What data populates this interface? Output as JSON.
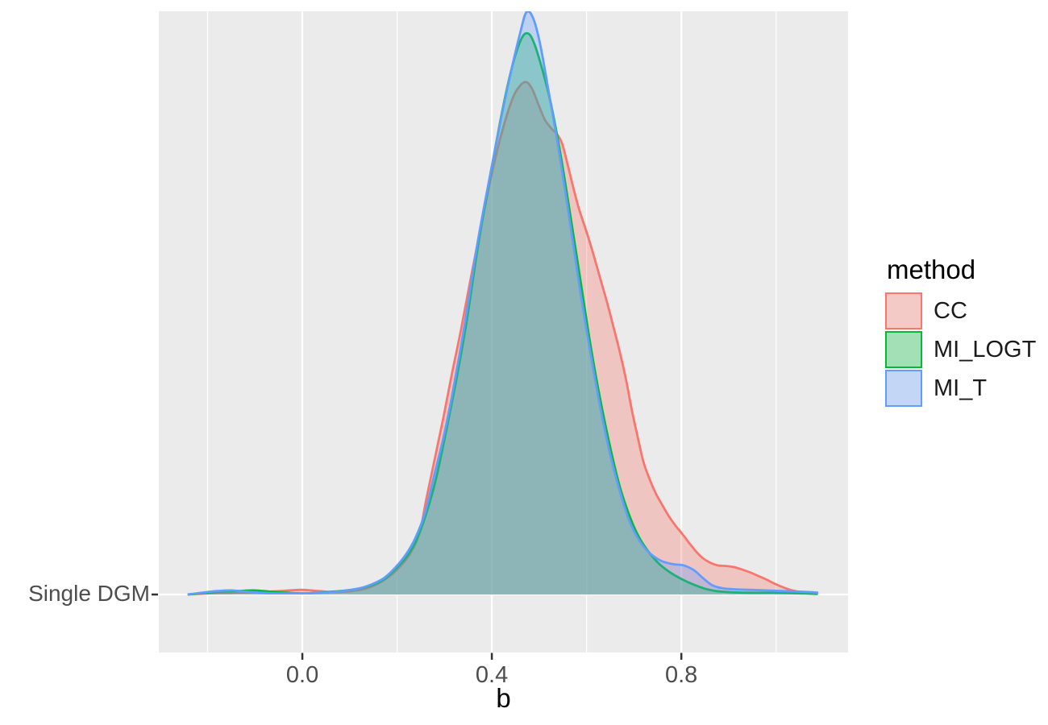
{
  "chart_data": {
    "type": "area",
    "subtype": "density-ridge",
    "x_axis": {
      "label": "b",
      "lim": [
        -0.303,
        1.152
      ],
      "ticks": {
        "values": [
          0.0,
          0.4,
          0.8
        ],
        "labels": [
          "0.0",
          "0.4",
          "0.8"
        ]
      },
      "minor_ticks": [
        -0.2,
        0.2,
        0.6,
        1.0
      ]
    },
    "y_axis": {
      "category": "Single DGM"
    },
    "legend": {
      "title": "method",
      "position": "right"
    },
    "fill_opacity": 0.32,
    "stroke_width": 2.8,
    "colors": {
      "panel_bg": "#EBEBEB",
      "grid": "#FFFFFF",
      "tick": "#333333",
      "axis_text": "#4D4D4D",
      "legend_key_bg": "#F2F2F2"
    },
    "series": [
      {
        "name": "CC",
        "color": "#F8766D",
        "points": [
          [
            -0.242,
            0.0
          ],
          [
            -0.196,
            0.002
          ],
          [
            -0.145,
            0.003
          ],
          [
            -0.094,
            0.004
          ],
          [
            -0.046,
            0.006
          ],
          [
            -0.003,
            0.008
          ],
          [
            0.034,
            0.006
          ],
          [
            0.068,
            0.004
          ],
          [
            0.106,
            0.006
          ],
          [
            0.133,
            0.01
          ],
          [
            0.158,
            0.018
          ],
          [
            0.182,
            0.03
          ],
          [
            0.204,
            0.046
          ],
          [
            0.226,
            0.068
          ],
          [
            0.247,
            0.105
          ],
          [
            0.262,
            0.165
          ],
          [
            0.28,
            0.235
          ],
          [
            0.298,
            0.305
          ],
          [
            0.316,
            0.38
          ],
          [
            0.335,
            0.455
          ],
          [
            0.356,
            0.545
          ],
          [
            0.377,
            0.632
          ],
          [
            0.398,
            0.715
          ],
          [
            0.42,
            0.79
          ],
          [
            0.443,
            0.85
          ],
          [
            0.458,
            0.872
          ],
          [
            0.472,
            0.88
          ],
          [
            0.485,
            0.868
          ],
          [
            0.499,
            0.84
          ],
          [
            0.512,
            0.815
          ],
          [
            0.526,
            0.8
          ],
          [
            0.538,
            0.79
          ],
          [
            0.548,
            0.775
          ],
          [
            0.558,
            0.745
          ],
          [
            0.57,
            0.705
          ],
          [
            0.584,
            0.662
          ],
          [
            0.599,
            0.625
          ],
          [
            0.614,
            0.585
          ],
          [
            0.628,
            0.545
          ],
          [
            0.642,
            0.505
          ],
          [
            0.655,
            0.465
          ],
          [
            0.669,
            0.42
          ],
          [
            0.683,
            0.37
          ],
          [
            0.696,
            0.315
          ],
          [
            0.708,
            0.27
          ],
          [
            0.72,
            0.228
          ],
          [
            0.734,
            0.196
          ],
          [
            0.747,
            0.172
          ],
          [
            0.761,
            0.152
          ],
          [
            0.774,
            0.134
          ],
          [
            0.788,
            0.118
          ],
          [
            0.802,
            0.104
          ],
          [
            0.817,
            0.088
          ],
          [
            0.832,
            0.073
          ],
          [
            0.846,
            0.062
          ],
          [
            0.86,
            0.055
          ],
          [
            0.877,
            0.05
          ],
          [
            0.894,
            0.049
          ],
          [
            0.911,
            0.047
          ],
          [
            0.928,
            0.043
          ],
          [
            0.945,
            0.038
          ],
          [
            0.962,
            0.032
          ],
          [
            0.979,
            0.026
          ],
          [
            0.996,
            0.019
          ],
          [
            1.013,
            0.013
          ],
          [
            1.03,
            0.008
          ],
          [
            1.047,
            0.005
          ],
          [
            1.064,
            0.003
          ],
          [
            1.077,
            0.001
          ]
        ]
      },
      {
        "name": "MI_LOGT",
        "color": "#00BA38",
        "points": [
          [
            -0.242,
            0.0
          ],
          [
            -0.199,
            0.003
          ],
          [
            -0.17,
            0.005
          ],
          [
            -0.136,
            0.006
          ],
          [
            -0.102,
            0.007
          ],
          [
            -0.068,
            0.005
          ],
          [
            -0.034,
            0.003
          ],
          [
            0.0,
            0.002
          ],
          [
            0.034,
            0.003
          ],
          [
            0.065,
            0.005
          ],
          [
            0.094,
            0.007
          ],
          [
            0.124,
            0.011
          ],
          [
            0.15,
            0.017
          ],
          [
            0.174,
            0.027
          ],
          [
            0.197,
            0.044
          ],
          [
            0.22,
            0.065
          ],
          [
            0.24,
            0.092
          ],
          [
            0.26,
            0.135
          ],
          [
            0.281,
            0.195
          ],
          [
            0.301,
            0.27
          ],
          [
            0.323,
            0.36
          ],
          [
            0.346,
            0.465
          ],
          [
            0.371,
            0.6
          ],
          [
            0.397,
            0.72
          ],
          [
            0.422,
            0.83
          ],
          [
            0.444,
            0.91
          ],
          [
            0.463,
            0.955
          ],
          [
            0.477,
            0.963
          ],
          [
            0.49,
            0.945
          ],
          [
            0.507,
            0.9
          ],
          [
            0.524,
            0.845
          ],
          [
            0.543,
            0.765
          ],
          [
            0.563,
            0.665
          ],
          [
            0.586,
            0.545
          ],
          [
            0.608,
            0.43
          ],
          [
            0.63,
            0.33
          ],
          [
            0.652,
            0.245
          ],
          [
            0.672,
            0.18
          ],
          [
            0.693,
            0.13
          ],
          [
            0.713,
            0.095
          ],
          [
            0.734,
            0.07
          ],
          [
            0.754,
            0.052
          ],
          [
            0.778,
            0.037
          ],
          [
            0.802,
            0.026
          ],
          [
            0.826,
            0.017
          ],
          [
            0.85,
            0.01
          ],
          [
            0.873,
            0.006
          ],
          [
            0.902,
            0.004
          ],
          [
            0.945,
            0.003
          ],
          [
            0.996,
            0.003
          ],
          [
            1.047,
            0.002
          ],
          [
            1.088,
            0.001
          ]
        ]
      },
      {
        "name": "MI_T",
        "color": "#619CFF",
        "points": [
          [
            -0.242,
            0.0
          ],
          [
            -0.204,
            0.004
          ],
          [
            -0.179,
            0.006
          ],
          [
            -0.15,
            0.007
          ],
          [
            -0.119,
            0.005
          ],
          [
            -0.09,
            0.003
          ],
          [
            -0.06,
            0.002
          ],
          [
            -0.026,
            0.002
          ],
          [
            0.005,
            0.002
          ],
          [
            0.034,
            0.003
          ],
          [
            0.063,
            0.004
          ],
          [
            0.094,
            0.007
          ],
          [
            0.123,
            0.011
          ],
          [
            0.148,
            0.018
          ],
          [
            0.172,
            0.028
          ],
          [
            0.196,
            0.046
          ],
          [
            0.218,
            0.068
          ],
          [
            0.238,
            0.096
          ],
          [
            0.259,
            0.14
          ],
          [
            0.277,
            0.2
          ],
          [
            0.298,
            0.27
          ],
          [
            0.318,
            0.35
          ],
          [
            0.344,
            0.47
          ],
          [
            0.369,
            0.6
          ],
          [
            0.395,
            0.715
          ],
          [
            0.42,
            0.82
          ],
          [
            0.441,
            0.9
          ],
          [
            0.46,
            0.965
          ],
          [
            0.473,
            1.0
          ],
          [
            0.487,
            0.99
          ],
          [
            0.502,
            0.945
          ],
          [
            0.519,
            0.868
          ],
          [
            0.54,
            0.77
          ],
          [
            0.562,
            0.655
          ],
          [
            0.584,
            0.535
          ],
          [
            0.606,
            0.425
          ],
          [
            0.628,
            0.325
          ],
          [
            0.65,
            0.24
          ],
          [
            0.671,
            0.175
          ],
          [
            0.691,
            0.125
          ],
          [
            0.712,
            0.092
          ],
          [
            0.732,
            0.072
          ],
          [
            0.757,
            0.058
          ],
          [
            0.783,
            0.052
          ],
          [
            0.805,
            0.05
          ],
          [
            0.826,
            0.042
          ],
          [
            0.846,
            0.028
          ],
          [
            0.865,
            0.016
          ],
          [
            0.885,
            0.011
          ],
          [
            0.911,
            0.009
          ],
          [
            0.945,
            0.008
          ],
          [
            0.979,
            0.007
          ],
          [
            1.013,
            0.006
          ],
          [
            1.047,
            0.005
          ],
          [
            1.077,
            0.004
          ],
          [
            1.089,
            0.003
          ]
        ]
      }
    ]
  }
}
